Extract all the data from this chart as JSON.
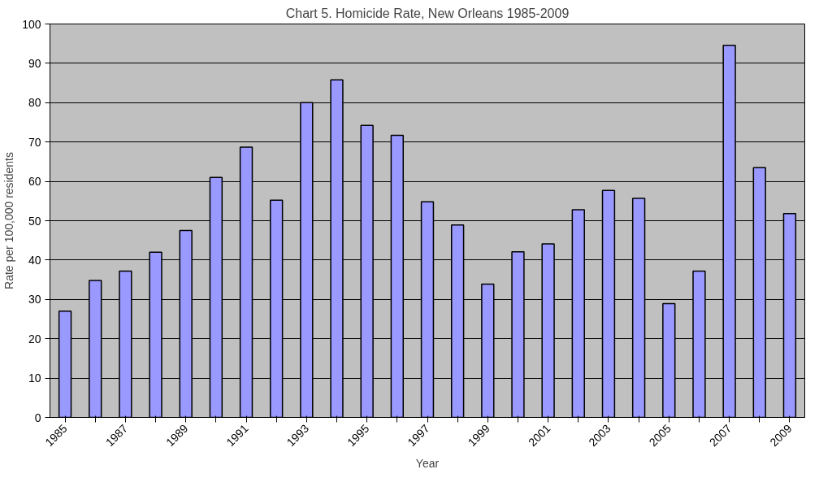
{
  "chart_data": {
    "type": "bar",
    "title": "Chart 5. Homicide Rate, New Orleans 1985-2009",
    "xlabel": "Year",
    "ylabel": "Rate per 100,000 residents",
    "categories": [
      "1985",
      null,
      "1987",
      null,
      "1989",
      null,
      "1991",
      null,
      "1993",
      null,
      "1995",
      null,
      "1997",
      null,
      "1999",
      null,
      "2001",
      null,
      "2003",
      null,
      "2005",
      null,
      "2007",
      null,
      "2009"
    ],
    "values": [
      27,
      34.8,
      37.2,
      42,
      47.5,
      61,
      68.7,
      55.2,
      80,
      85.8,
      74.2,
      71.7,
      54.8,
      48.9,
      33.9,
      42.1,
      44.1,
      52.8,
      57.7,
      55.7,
      28.9,
      37.2,
      94.6,
      63.5,
      51.8
    ],
    "color": "#9999ff",
    "ylim": [
      0,
      100
    ],
    "yticks": [
      0,
      10,
      20,
      30,
      40,
      50,
      60,
      70,
      80,
      90,
      100
    ],
    "grid": "y"
  }
}
